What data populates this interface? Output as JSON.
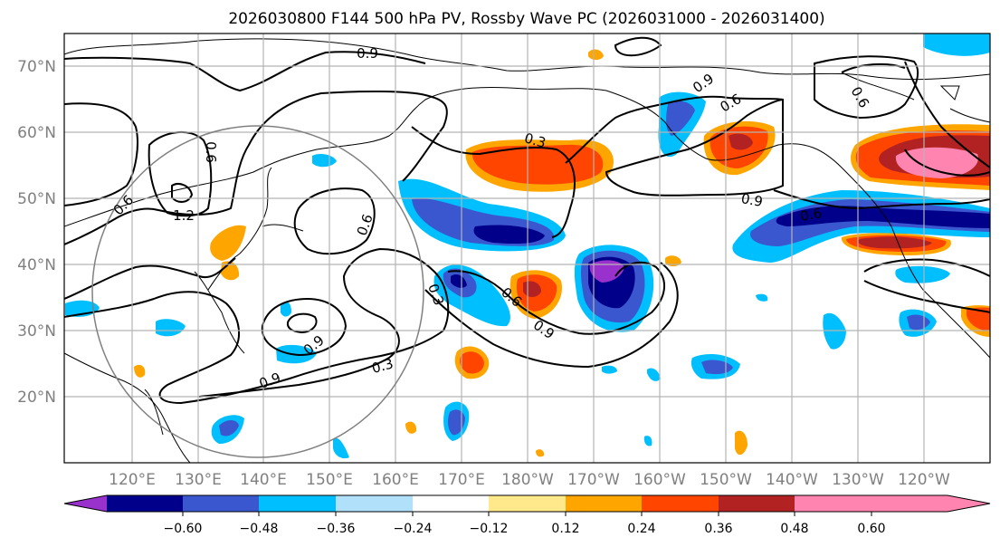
{
  "title": "2026030800 F144 500 hPa PV, Rossby Wave PC (2026031000 - 2026031400)",
  "map": {
    "lat_ticks": [
      "70°N",
      "60°N",
      "50°N",
      "40°N",
      "30°N",
      "20°N"
    ],
    "lon_ticks": [
      "120°E",
      "130°E",
      "140°E",
      "150°E",
      "160°E",
      "170°E",
      "180°W",
      "170°W",
      "160°W",
      "150°W",
      "140°W",
      "130°W",
      "120°W"
    ],
    "contour_labels": [
      "0.9",
      "0.9",
      "0.6",
      "0.6",
      "0.3",
      "0.6",
      "0.9",
      "1.2",
      "0.6",
      "0.3",
      "0.6",
      "0.9",
      "0.6",
      "0.9",
      "0.3",
      "0.9",
      "0.6"
    ]
  },
  "colorbar": {
    "ticks": [
      "−0.60",
      "−0.48",
      "−0.36",
      "−0.24",
      "−0.12",
      "0.12",
      "0.24",
      "0.36",
      "0.48",
      "0.60"
    ],
    "colors": [
      "#9932CC",
      "#00008B",
      "#3A57CF",
      "#00BFFF",
      "#B0E0FA",
      "#FFFFFF",
      "#FFE98A",
      "#FFA500",
      "#FF4500",
      "#B22222",
      "#FF85B0"
    ]
  }
}
